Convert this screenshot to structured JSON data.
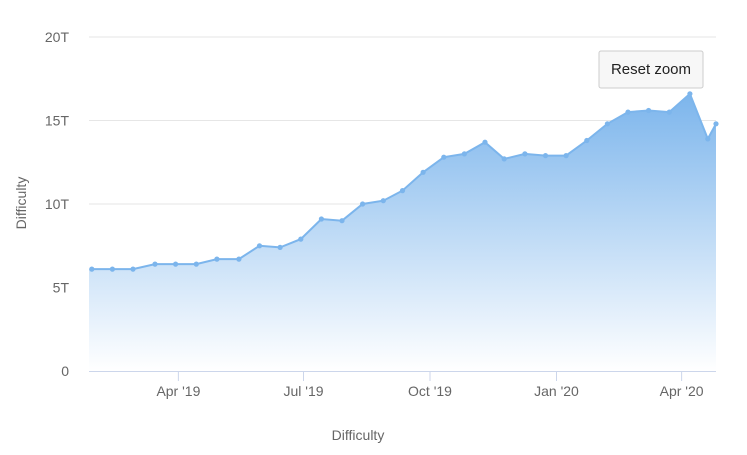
{
  "chart": {
    "reset_zoom_label": "Reset zoom",
    "y_axis_title": "Difficulty",
    "x_axis_title": "Difficulty"
  },
  "chart_data": {
    "type": "area",
    "title": "",
    "xlabel": "Difficulty",
    "ylabel": "Difficulty",
    "ylim": [
      0,
      20
    ],
    "y_unit": "T",
    "y_ticks": [
      "0",
      "5T",
      "10T",
      "15T",
      "20T"
    ],
    "x_ticks": [
      "Apr '19",
      "Jul '19",
      "Oct '19",
      "Jan '20",
      "Apr '20"
    ],
    "xlim": [
      "2019-01-26",
      "2020-04-26"
    ],
    "grid": true,
    "legend": "none",
    "colors": {
      "line": "#7cb5ec",
      "fill_top": "#7cb5ec",
      "fill_bottom": "#ffffff",
      "grid": "#e6e6e6",
      "axis": "#ccd6eb"
    },
    "series": [
      {
        "x": [
          "2019-01-28",
          "2019-02-12",
          "2019-02-27",
          "2019-03-15",
          "2019-03-30",
          "2019-04-14",
          "2019-04-29",
          "2019-05-15",
          "2019-05-30",
          "2019-06-14",
          "2019-06-29",
          "2019-07-14",
          "2019-07-29",
          "2019-08-13",
          "2019-08-28",
          "2019-09-11",
          "2019-09-26",
          "2019-10-11",
          "2019-10-26",
          "2019-11-10",
          "2019-11-24",
          "2019-12-09",
          "2019-12-24",
          "2020-01-08",
          "2020-01-23",
          "2020-02-07",
          "2020-02-22",
          "2020-03-08",
          "2020-03-23",
          "2020-04-07",
          "2020-04-20",
          "2020-04-26"
        ],
        "values": [
          6.1,
          6.1,
          6.1,
          6.4,
          6.4,
          6.4,
          6.7,
          6.7,
          7.5,
          7.4,
          7.9,
          9.1,
          9.0,
          10.0,
          10.2,
          10.8,
          11.9,
          12.8,
          13.0,
          13.7,
          12.7,
          13.0,
          12.9,
          12.9,
          13.8,
          14.8,
          15.5,
          15.6,
          15.5,
          16.6,
          13.9,
          14.8
        ]
      }
    ]
  }
}
